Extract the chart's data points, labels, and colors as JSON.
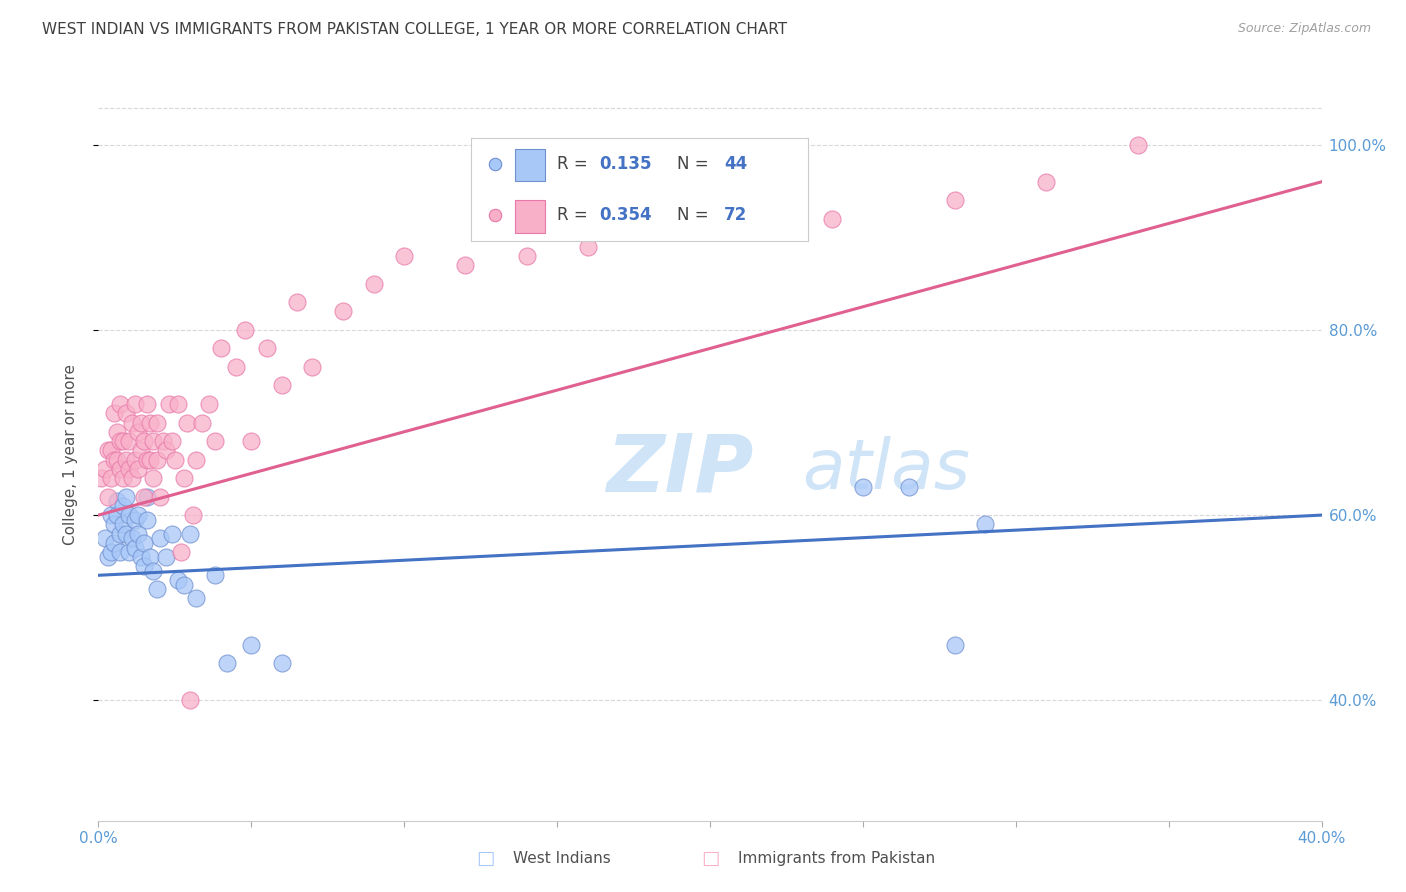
{
  "title": "WEST INDIAN VS IMMIGRANTS FROM PAKISTAN COLLEGE, 1 YEAR OR MORE CORRELATION CHART",
  "source_text": "Source: ZipAtlas.com",
  "ylabel": "College, 1 year or more",
  "legend_label_blue": "West Indians",
  "legend_label_pink": "Immigrants from Pakistan",
  "r_blue": "0.135",
  "n_blue": "44",
  "r_pink": "0.354",
  "n_pink": "72",
  "xmin": 0.0,
  "xmax": 0.4,
  "ymin": 0.27,
  "ymax": 1.06,
  "yticks": [
    0.4,
    0.6,
    0.8,
    1.0
  ],
  "blue_color": "#a8c8f8",
  "pink_color": "#f8b0c8",
  "blue_edge_color": "#7090d0",
  "pink_edge_color": "#e878a8",
  "blue_line_color": "#4472c4",
  "pink_line_color": "#e06090",
  "watermark_color": "#d0e4f8",
  "background_color": "#ffffff",
  "grid_color": "#d8d8d8",
  "title_color": "#404040",
  "axis_label_color": "#5b9bd5",
  "blue_scatter_x": [
    0.002,
    0.003,
    0.004,
    0.004,
    0.005,
    0.005,
    0.006,
    0.006,
    0.007,
    0.007,
    0.008,
    0.008,
    0.009,
    0.009,
    0.01,
    0.01,
    0.011,
    0.012,
    0.012,
    0.013,
    0.013,
    0.014,
    0.015,
    0.015,
    0.016,
    0.016,
    0.017,
    0.018,
    0.019,
    0.02,
    0.022,
    0.024,
    0.026,
    0.028,
    0.03,
    0.032,
    0.038,
    0.042,
    0.05,
    0.06,
    0.25,
    0.265,
    0.28,
    0.29
  ],
  "blue_scatter_y": [
    0.575,
    0.555,
    0.6,
    0.56,
    0.59,
    0.57,
    0.615,
    0.6,
    0.58,
    0.56,
    0.61,
    0.59,
    0.62,
    0.58,
    0.56,
    0.6,
    0.575,
    0.595,
    0.565,
    0.58,
    0.6,
    0.555,
    0.57,
    0.545,
    0.62,
    0.595,
    0.555,
    0.54,
    0.52,
    0.575,
    0.555,
    0.58,
    0.53,
    0.525,
    0.58,
    0.51,
    0.535,
    0.44,
    0.46,
    0.44,
    0.63,
    0.63,
    0.46,
    0.59
  ],
  "pink_scatter_x": [
    0.001,
    0.002,
    0.003,
    0.003,
    0.004,
    0.004,
    0.005,
    0.005,
    0.006,
    0.006,
    0.007,
    0.007,
    0.007,
    0.008,
    0.008,
    0.009,
    0.009,
    0.01,
    0.01,
    0.011,
    0.011,
    0.012,
    0.012,
    0.013,
    0.013,
    0.014,
    0.014,
    0.015,
    0.015,
    0.016,
    0.016,
    0.017,
    0.017,
    0.018,
    0.018,
    0.019,
    0.019,
    0.02,
    0.021,
    0.022,
    0.023,
    0.024,
    0.025,
    0.026,
    0.027,
    0.028,
    0.029,
    0.03,
    0.031,
    0.032,
    0.034,
    0.036,
    0.038,
    0.04,
    0.045,
    0.048,
    0.05,
    0.055,
    0.06,
    0.065,
    0.07,
    0.08,
    0.09,
    0.1,
    0.12,
    0.14,
    0.16,
    0.2,
    0.24,
    0.28,
    0.31,
    0.34
  ],
  "pink_scatter_y": [
    0.64,
    0.65,
    0.67,
    0.62,
    0.67,
    0.64,
    0.66,
    0.71,
    0.69,
    0.66,
    0.68,
    0.65,
    0.72,
    0.64,
    0.68,
    0.66,
    0.71,
    0.65,
    0.68,
    0.64,
    0.7,
    0.66,
    0.72,
    0.65,
    0.69,
    0.67,
    0.7,
    0.62,
    0.68,
    0.66,
    0.72,
    0.66,
    0.7,
    0.64,
    0.68,
    0.66,
    0.7,
    0.62,
    0.68,
    0.67,
    0.72,
    0.68,
    0.66,
    0.72,
    0.56,
    0.64,
    0.7,
    0.4,
    0.6,
    0.66,
    0.7,
    0.72,
    0.68,
    0.78,
    0.76,
    0.8,
    0.68,
    0.78,
    0.74,
    0.83,
    0.76,
    0.82,
    0.85,
    0.88,
    0.87,
    0.88,
    0.89,
    0.91,
    0.92,
    0.94,
    0.96,
    1.0
  ],
  "blue_trend_x": [
    0.0,
    0.4
  ],
  "blue_trend_y": [
    0.535,
    0.6
  ],
  "pink_trend_x": [
    0.0,
    0.4
  ],
  "pink_trend_y": [
    0.6,
    0.96
  ]
}
